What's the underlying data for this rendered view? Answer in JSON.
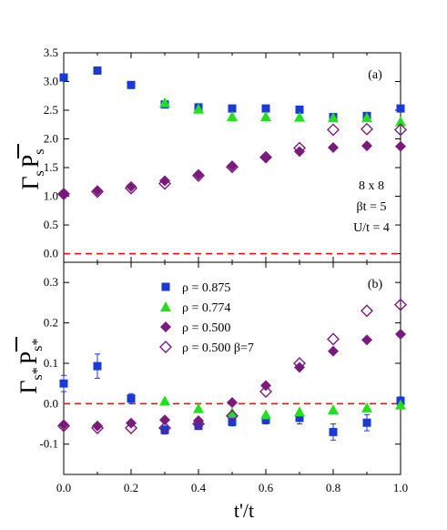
{
  "chart_data": [
    {
      "type": "scatter",
      "panel_label": "(a)",
      "ylabel": "Γ_s P̄_s",
      "xlim": [
        0,
        1.0
      ],
      "ylim": [
        -0.15,
        3.5
      ],
      "yticks": [
        0.0,
        0.5,
        1.0,
        1.5,
        2.0,
        2.5,
        3.0,
        3.5
      ],
      "ytick_labels": [
        "0.0",
        "0.5",
        "1.0",
        "1.5",
        "2.0",
        "2.5",
        "3.0",
        "3.5"
      ],
      "reference_line": {
        "y": 0.0,
        "style": "dashed",
        "color": "#e8141a"
      },
      "annotations": [
        "8 x 8",
        "βt = 5",
        "U/t = 4"
      ],
      "series": [
        {
          "name": "ρ = 0.875",
          "color": "#1a3ad6",
          "marker": "square",
          "x": [
            0.0,
            0.1,
            0.2,
            0.3,
            0.4,
            0.5,
            0.6,
            0.7,
            0.8,
            0.9,
            1.0
          ],
          "y": [
            3.07,
            3.19,
            2.94,
            2.6,
            2.55,
            2.53,
            2.53,
            2.51,
            2.38,
            2.4,
            2.53
          ]
        },
        {
          "name": "ρ = 0.774",
          "color": "#22e01e",
          "marker": "triangle",
          "x": [
            0.3,
            0.4,
            0.5,
            0.6,
            0.7,
            0.8,
            0.9,
            1.0
          ],
          "y": [
            2.63,
            2.52,
            2.39,
            2.39,
            2.38,
            2.37,
            2.37,
            2.3
          ]
        },
        {
          "name": "ρ = 0.500",
          "color": "#7a1a7e",
          "marker": "diamond",
          "x": [
            0.0,
            0.1,
            0.2,
            0.3,
            0.4,
            0.5,
            0.6,
            0.7,
            0.8,
            0.9,
            1.0
          ],
          "y": [
            1.05,
            1.1,
            1.17,
            1.27,
            1.38,
            1.53,
            1.67,
            1.78,
            1.85,
            1.88,
            1.87
          ]
        },
        {
          "name": "ρ = 0.500 β=7",
          "color": "#7a1a7e",
          "marker": "diamond-open",
          "x": [
            0.0,
            0.1,
            0.2,
            0.3,
            0.4,
            0.5,
            0.6,
            0.7,
            0.8,
            0.9,
            1.0
          ],
          "y": [
            1.04,
            1.08,
            1.14,
            1.22,
            1.36,
            1.51,
            1.68,
            1.84,
            2.16,
            2.17,
            2.16
          ]
        }
      ]
    },
    {
      "type": "scatter",
      "panel_label": "(b)",
      "ylabel": "Γ_s* P̄_s*",
      "xlabel": "t'/t",
      "xlim": [
        0,
        1.0
      ],
      "ylim": [
        -0.175,
        0.35
      ],
      "xticks": [
        0.0,
        0.2,
        0.4,
        0.6,
        0.8,
        1.0
      ],
      "xtick_labels": [
        "0.0",
        "0.2",
        "0.4",
        "0.6",
        "0.8",
        "1.0"
      ],
      "yticks": [
        -0.1,
        0.0,
        0.1,
        0.2,
        0.3
      ],
      "ytick_labels": [
        "-0.1",
        "0.0",
        "0.1",
        "0.2",
        "0.3"
      ],
      "reference_line": {
        "y": 0.0,
        "style": "dashed",
        "color": "#e8141a"
      },
      "legend": {
        "placement": "top-center",
        "entries": [
          "ρ = 0.875",
          "ρ = 0.774",
          "ρ = 0.500",
          "ρ = 0.500 β=7"
        ]
      },
      "series": [
        {
          "name": "ρ = 0.875",
          "color": "#1a3ad6",
          "marker": "square",
          "x": [
            0.0,
            0.1,
            0.2,
            0.3,
            0.4,
            0.5,
            0.6,
            0.7,
            0.8,
            0.9,
            1.0
          ],
          "y": [
            0.05,
            0.093,
            0.013,
            -0.065,
            -0.055,
            -0.045,
            -0.04,
            -0.035,
            -0.07,
            -0.047,
            0.007
          ],
          "err": [
            0.02,
            0.03,
            0.012,
            0.01,
            0.008,
            0.01,
            0.01,
            0.015,
            0.02,
            0.02,
            0.01
          ]
        },
        {
          "name": "ρ = 0.774",
          "color": "#22e01e",
          "marker": "triangle",
          "x": [
            0.3,
            0.4,
            0.5,
            0.6,
            0.7,
            0.8,
            0.9,
            1.0
          ],
          "y": [
            0.007,
            -0.012,
            -0.022,
            -0.027,
            -0.02,
            -0.015,
            -0.01,
            -0.003
          ]
        },
        {
          "name": "ρ = 0.500",
          "color": "#7a1a7e",
          "marker": "diamond",
          "x": [
            0.0,
            0.1,
            0.2,
            0.3,
            0.4,
            0.5,
            0.6,
            0.7,
            0.8,
            0.9,
            1.0
          ],
          "y": [
            -0.052,
            -0.055,
            -0.048,
            -0.04,
            -0.042,
            0.003,
            0.045,
            0.09,
            0.13,
            0.158,
            0.172
          ]
        },
        {
          "name": "ρ = 0.500 β=7",
          "color": "#7a1a7e",
          "marker": "diamond-open",
          "x": [
            0.0,
            0.1,
            0.2,
            0.3,
            0.4,
            0.5,
            0.6,
            0.7,
            0.8,
            0.9,
            1.0
          ],
          "y": [
            -0.055,
            -0.06,
            -0.06,
            -0.06,
            -0.05,
            -0.03,
            0.03,
            0.1,
            0.16,
            0.23,
            0.245
          ]
        }
      ]
    }
  ]
}
